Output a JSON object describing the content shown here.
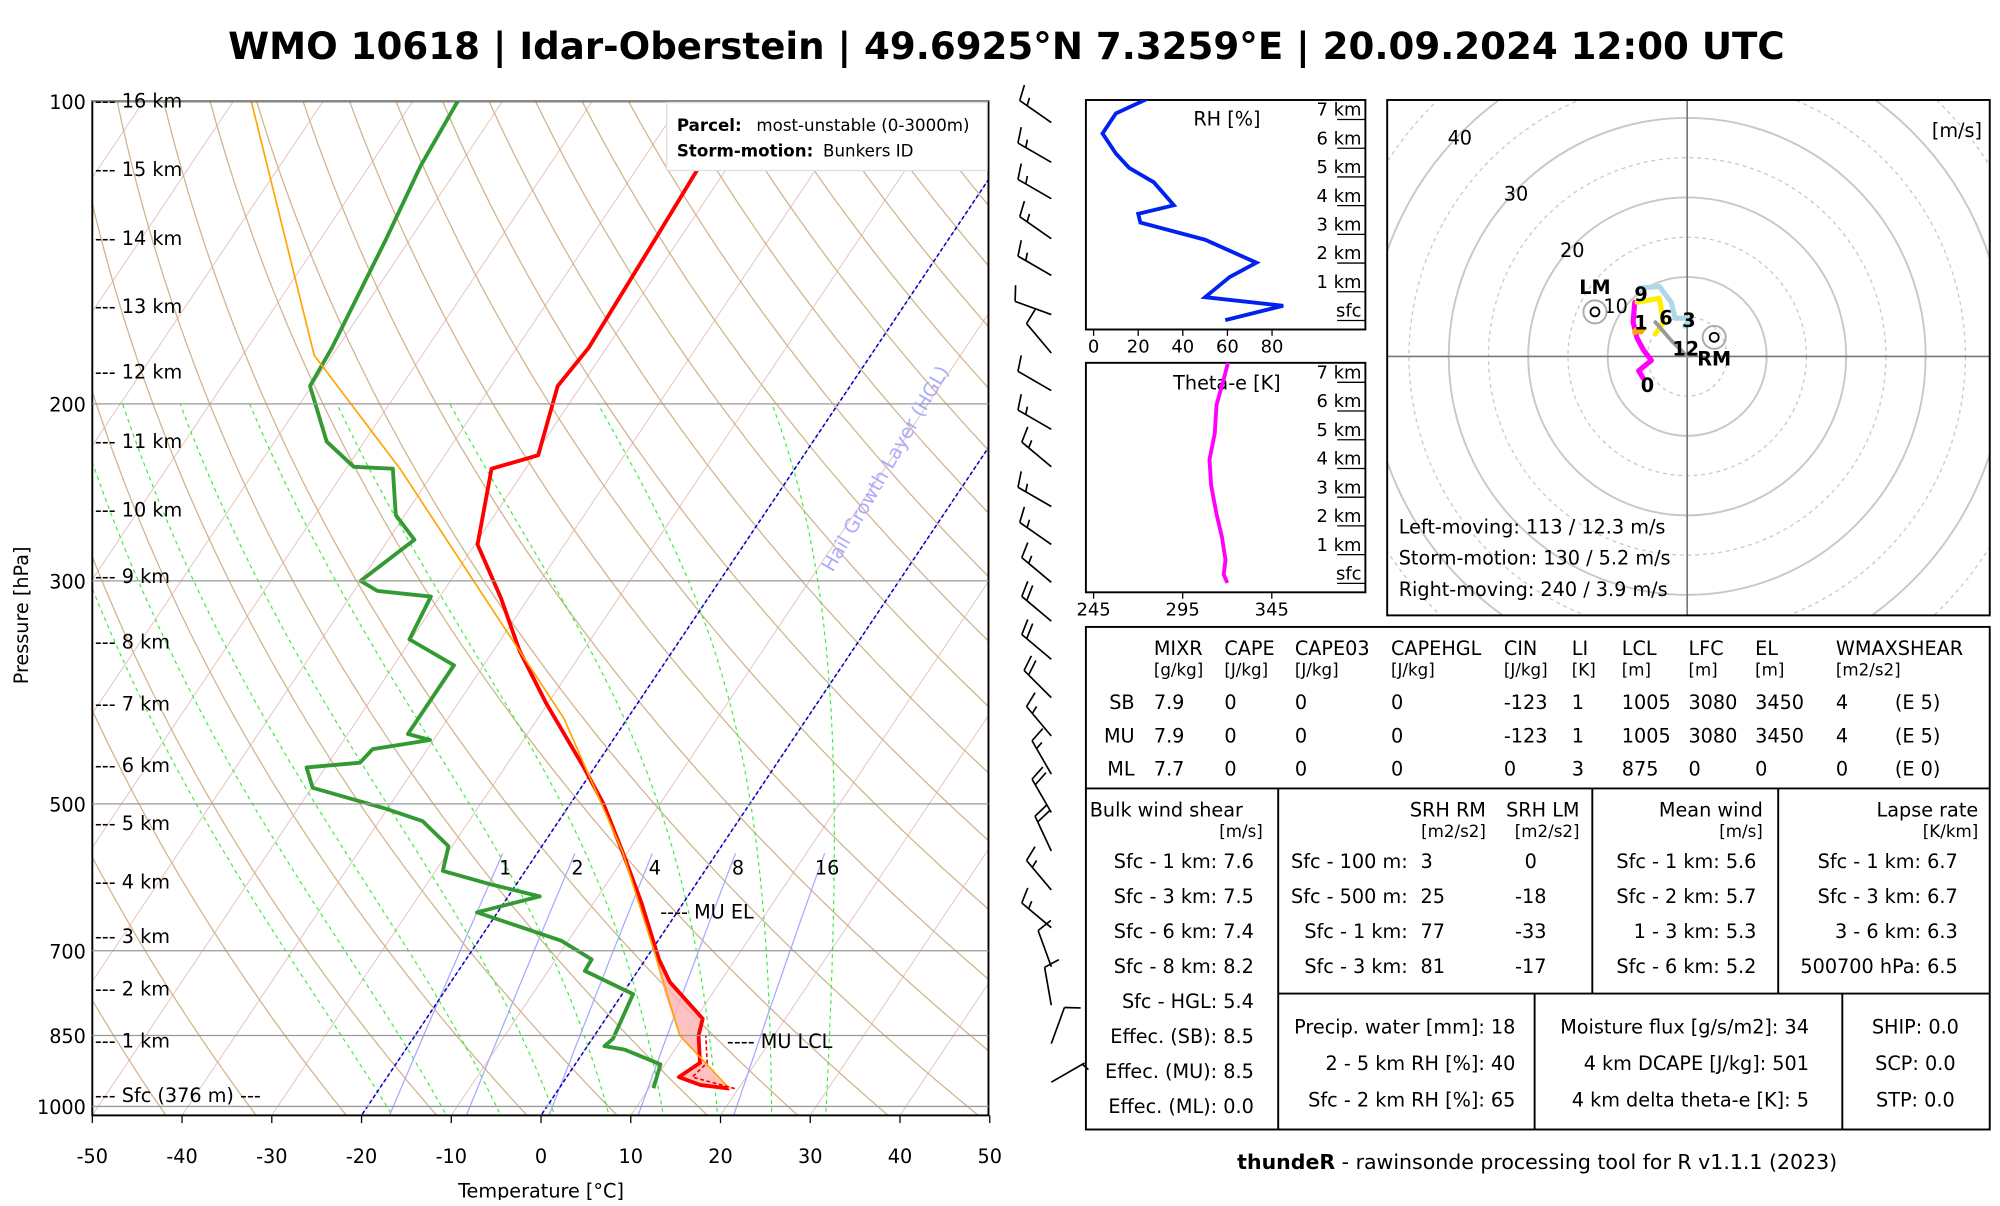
{
  "title": "WMO 10618 | Idar-Oberstein | 49.6925°N 7.3259°E | 20.09.2024 12:00 UTC",
  "chart_data": [
    {
      "type": "line",
      "name": "skew-T log-p diagram",
      "xlabel": "Temperature [°C]",
      "ylabel": "Pressure [hPa]",
      "x_ticks": [
        -50,
        -40,
        -30,
        -20,
        -10,
        0,
        10,
        20,
        30,
        40,
        50
      ],
      "xlim": [
        -50,
        50
      ],
      "y_ticks": [
        100,
        200,
        300,
        500,
        700,
        850,
        1000
      ],
      "ylim": [
        1020,
        100
      ],
      "height_labels": [
        {
          "p": 100,
          "label": "--- 16 km"
        },
        {
          "p": 117,
          "label": "--- 15 km"
        },
        {
          "p": 137,
          "label": "--- 14 km"
        },
        {
          "p": 160,
          "label": "--- 13 km"
        },
        {
          "p": 186,
          "label": "--- 12 km"
        },
        {
          "p": 218,
          "label": "--- 11 km"
        },
        {
          "p": 255,
          "label": "--- 10 km"
        },
        {
          "p": 297,
          "label": "--- 9 km"
        },
        {
          "p": 345,
          "label": "--- 8 km"
        },
        {
          "p": 398,
          "label": "--- 7 km"
        },
        {
          "p": 458,
          "label": "--- 6 km"
        },
        {
          "p": 523,
          "label": "--- 5 km"
        },
        {
          "p": 598,
          "label": "--- 4 km"
        },
        {
          "p": 678,
          "label": "--- 3 km"
        },
        {
          "p": 764,
          "label": "--- 2 km"
        },
        {
          "p": 861,
          "label": "--- 1 km"
        },
        {
          "p": 975,
          "label": "--- Sfc (376 m) ---"
        }
      ],
      "legend": {
        "parcel_label": "Parcel:",
        "parcel_value": "most-unstable (0-3000m)",
        "storm_label": "Storm-motion:",
        "storm_value": "Bunkers ID",
        "placement": "top-right"
      },
      "annotations": {
        "hgl": "Hail Growth Layer (HGL)",
        "mu_el": "---- MU EL",
        "mu_el_p": 641,
        "mu_lcl": "---- MU LCL",
        "mu_lcl_p": 862
      },
      "mixing_ratio_lines": [
        "1",
        "2",
        "4",
        "8",
        "16"
      ],
      "special_isotherms": [
        0,
        -20
      ],
      "series": [
        {
          "name": "temperature",
          "color": "#ff0000",
          "p": [
            960,
            952,
            935,
            905,
            850,
            818,
            752,
            714,
            627,
            558,
            500,
            460,
            397,
            352,
            312,
            276,
            232,
            225,
            192,
            176,
            136.5,
            116,
            100
          ],
          "t": [
            19.0,
            15.5,
            12.5,
            13.8,
            11.6,
            10.8,
            4.4,
            1.5,
            -4.7,
            -10.6,
            -16.3,
            -21.2,
            -30.2,
            -37.1,
            -43.1,
            -49.7,
            -53.8,
            -49.6,
            -52.6,
            -52.0,
            -52.7,
            -53.2,
            -55.3
          ]
        },
        {
          "name": "dewpoint",
          "color": "#339933",
          "p": [
            959,
            908,
            878,
            871,
            856,
            773,
            733,
            714,
            684,
            641,
            618,
            600,
            583,
            551,
            520,
            505,
            482,
            460,
            455,
            441,
            432,
            426,
            364,
            343,
            311,
            307,
            300,
            273,
            258,
            232,
            231,
            218,
            192,
            176,
            137,
            116,
            100
          ],
          "t": [
            10.5,
            9.5,
            4.4,
            1.9,
            2.3,
            1.2,
            -5.9,
            -6.0,
            -10.8,
            -22.3,
            -16.5,
            -23.3,
            -29.2,
            -30.4,
            -35.2,
            -40.4,
            -49.9,
            -52.1,
            -46.5,
            -46.1,
            -40.4,
            -43.3,
            -43.3,
            -50.2,
            -51.0,
            -57.4,
            -60.0,
            -57.1,
            -61.0,
            -64.8,
            -69.3,
            -74.2,
            -80.2,
            -80.6,
            -82.7,
            -84.3,
            -85.0
          ]
        },
        {
          "name": "parcel",
          "color": "#ffa500",
          "p": [
            960,
            850,
            700,
            558,
            411,
            232,
            179,
            100
          ],
          "t": [
            19.0,
            9.5,
            0.3,
            -10.6,
            -27.1,
            -64.0,
            -82.0,
            -108.0
          ]
        }
      ],
      "wind_barbs": [
        {
          "p": 105,
          "dir": 305,
          "spd_kt": 15
        },
        {
          "p": 115,
          "dir": 300,
          "spd_kt": 15
        },
        {
          "p": 125,
          "dir": 300,
          "spd_kt": 15
        },
        {
          "p": 137,
          "dir": 305,
          "spd_kt": 15
        },
        {
          "p": 149,
          "dir": 300,
          "spd_kt": 15
        },
        {
          "p": 163,
          "dir": 290,
          "spd_kt": 10
        },
        {
          "p": 178,
          "dir": 320,
          "spd_kt": 10
        },
        {
          "p": 194,
          "dir": 300,
          "spd_kt": 10
        },
        {
          "p": 212,
          "dir": 300,
          "spd_kt": 15
        },
        {
          "p": 231,
          "dir": 310,
          "spd_kt": 15
        },
        {
          "p": 253,
          "dir": 300,
          "spd_kt": 15
        },
        {
          "p": 276,
          "dir": 305,
          "spd_kt": 15
        },
        {
          "p": 301,
          "dir": 310,
          "spd_kt": 15
        },
        {
          "p": 329,
          "dir": 310,
          "spd_kt": 20
        },
        {
          "p": 359,
          "dir": 310,
          "spd_kt": 20
        },
        {
          "p": 392,
          "dir": 315,
          "spd_kt": 20
        },
        {
          "p": 428,
          "dir": 320,
          "spd_kt": 15
        },
        {
          "p": 467,
          "dir": 330,
          "spd_kt": 15
        },
        {
          "p": 510,
          "dir": 330,
          "spd_kt": 20
        },
        {
          "p": 557,
          "dir": 335,
          "spd_kt": 20
        },
        {
          "p": 609,
          "dir": 320,
          "spd_kt": 15
        },
        {
          "p": 664,
          "dir": 310,
          "spd_kt": 15
        },
        {
          "p": 726,
          "dir": 340,
          "spd_kt": 10
        },
        {
          "p": 793,
          "dir": 350,
          "spd_kt": 10
        },
        {
          "p": 866,
          "dir": 20,
          "spd_kt": 10
        },
        {
          "p": 946,
          "dir": 60,
          "spd_kt": 5
        }
      ]
    },
    {
      "type": "line",
      "name": "relative humidity profile",
      "title": "RH [%]",
      "x_ticks": [
        "0",
        "20",
        "40",
        "60",
        "80"
      ],
      "xlim": [
        -3,
        100
      ],
      "height_ticks": [
        "sfc",
        "1 km",
        "2 km",
        "3 km",
        "4 km",
        "5 km",
        "6 km",
        "7 km"
      ],
      "series": [
        {
          "name": "RH",
          "color": "#0022ee",
          "h_km": [
            -0.3,
            0.2,
            0.5,
            1.2,
            1.7,
            2.5,
            3.1,
            3.4,
            3.7,
            4.5,
            5.0,
            5.5,
            6.2,
            6.9,
            7.4,
            7.8
          ],
          "rh": [
            59,
            85,
            50,
            61,
            73,
            50,
            21,
            20,
            36,
            27,
            16,
            10,
            4,
            10,
            24,
            33
          ]
        }
      ]
    },
    {
      "type": "line",
      "name": "theta-e profile",
      "title": "Theta-e [K]",
      "x_ticks": [
        "245",
        "295",
        "345"
      ],
      "xlim": [
        241,
        400
      ],
      "height_ticks": [
        "sfc",
        "1 km",
        "2 km",
        "3 km",
        "4 km",
        "5 km",
        "6 km",
        "7 km"
      ],
      "series": [
        {
          "name": "theta-e",
          "color": "#ff00ff",
          "h_km": [
            -0.3,
            0.0,
            0.5,
            1.3,
            2.1,
            3.1,
            4.0,
            4.9,
            5.9,
            6.8,
            7.5
          ],
          "theta_e": [
            320,
            318,
            319,
            317,
            314,
            311,
            310,
            313,
            314,
            318,
            321
          ]
        }
      ]
    },
    {
      "type": "line",
      "name": "hodograph",
      "unit_label": "[m/s]",
      "ring_labels": [
        "10",
        "20",
        "30",
        "40"
      ],
      "storm_motion_lines": [
        "Left-moving: 113 / 12.3 m/s",
        "Storm-motion: 130 / 5.2 m/s",
        "Right-moving: 240 / 3.9 m/s"
      ],
      "lm": {
        "label": "LM",
        "u": -11.6,
        "v": 5.6
      },
      "rm": {
        "label": "RM",
        "u": 3.4,
        "v": 2.4
      },
      "series": [
        {
          "name": "0-1 km",
          "color": "#ff00ff",
          "u": [
            -5.5,
            -6.1,
            -4.5,
            -5.5,
            -6.3,
            -6.8,
            -6.6
          ],
          "v": [
            -2.8,
            -1.8,
            -0.5,
            0.8,
            2.3,
            4.3,
            6.8
          ]
        },
        {
          "name": "1-3 km",
          "color": "#ffa500",
          "u": [
            -6.6,
            -5.5,
            -5.8,
            -6.5,
            -6.6
          ],
          "v": [
            3.0,
            3.5,
            3.1,
            3.3,
            3.0
          ]
        },
        {
          "name": "3-6 km",
          "color": "#ffee00",
          "u": [
            -6.3,
            -3.5,
            -3.0,
            -4.0
          ],
          "v": [
            6.8,
            7.3,
            4.3,
            2.8
          ]
        },
        {
          "name": "6-9 km",
          "color": "#add8e6",
          "u": [
            -6.0,
            -3.5,
            -2.0,
            -1.5,
            0.5,
            -0.3
          ],
          "v": [
            8.6,
            8.8,
            6.8,
            4.8,
            4.8,
            3.8
          ]
        },
        {
          "name": "9-12 km",
          "color": "#999999",
          "u": [
            -4.0,
            -2.0,
            0.0
          ],
          "v": [
            4.3,
            2.0,
            0.0
          ]
        }
      ],
      "height_markers": [
        {
          "label": "0",
          "u": -5.0,
          "v": -3.5
        },
        {
          "label": "1",
          "u": -5.5,
          "v": 5.3
        },
        {
          "label": "3",
          "u": -0.1,
          "v": 3.7
        },
        {
          "label": "6",
          "u": -3.0,
          "v": 5.0
        },
        {
          "label": "9",
          "u": -5.8,
          "v": 6.8
        },
        {
          "label": "12",
          "u": -0.5,
          "v": 2.4
        }
      ]
    }
  ],
  "params_table": {
    "headers": [
      [
        "MIXR",
        "[g/kg]"
      ],
      [
        "CAPE",
        "[J/kg]"
      ],
      [
        "CAPE03",
        "[J/kg]"
      ],
      [
        "CAPEHGL",
        "[J/kg]"
      ],
      [
        "CIN",
        "[J/kg]"
      ],
      [
        "LI",
        "[K]"
      ],
      [
        "LCL",
        "[m]"
      ],
      [
        "LFC",
        "[m]"
      ],
      [
        "EL",
        "[m]"
      ],
      [
        "WMAXSHEAR",
        "[m2/s2]"
      ]
    ],
    "rows": [
      {
        "label": "SB",
        "values": [
          "7.9",
          "0",
          "0",
          "0",
          "-123",
          "1",
          "1005",
          "3080",
          "3450",
          "4",
          "(E 5)"
        ]
      },
      {
        "label": "MU",
        "values": [
          "7.9",
          "0",
          "0",
          "0",
          "-123",
          "1",
          "1005",
          "3080",
          "3450",
          "4",
          "(E 5)"
        ]
      },
      {
        "label": "ML",
        "values": [
          "7.7",
          "0",
          "0",
          "0",
          "0",
          "3",
          "875",
          "0",
          "0",
          "0",
          "(E 0)"
        ]
      }
    ]
  },
  "bulk_shear": {
    "title": "Bulk wind shear",
    "unit": "[m/s]",
    "rows": [
      "Sfc - 1 km: 7.6",
      "Sfc - 3 km: 7.5",
      "Sfc - 6 km: 7.4",
      "Sfc - 8 km: 8.2",
      "Sfc - HGL: 5.4",
      "Effec. (SB): 8.5",
      "Effec. (MU): 8.5",
      "Effec. (ML): 0.0"
    ]
  },
  "srh": {
    "rm_title": "SRH RM",
    "rm_unit": "[m2/s2]",
    "lm_title": "SRH LM",
    "lm_unit": "[m2/s2]",
    "rows": [
      {
        "label": "Sfc - 100 m:",
        "rm": "3",
        "lm": "0"
      },
      {
        "label": "Sfc - 500 m:",
        "rm": "25",
        "lm": "-18"
      },
      {
        "label": "Sfc - 1 km:",
        "rm": "77",
        "lm": "-33"
      },
      {
        "label": "Sfc - 3 km:",
        "rm": "81",
        "lm": "-17"
      }
    ]
  },
  "mean_wind": {
    "title": "Mean wind",
    "unit": "[m/s]",
    "rows": [
      "Sfc - 1 km: 5.6",
      "Sfc - 2 km: 5.7",
      "1 - 3 km: 5.3",
      "Sfc - 6 km: 5.2"
    ]
  },
  "lapse_rate": {
    "title": "Lapse rate",
    "unit": "[K/km]",
    "rows": [
      "Sfc - 1 km: 6.7",
      "Sfc - 3 km: 6.7",
      "3 - 6 km: 6.3",
      "500700 hPa: 6.5"
    ]
  },
  "moisture": {
    "rows": [
      "Precip. water [mm]: 18",
      "2 - 5 km RH [%]: 40",
      "Sfc - 2 km RH [%]: 65"
    ]
  },
  "moisture_flux": {
    "rows": [
      "Moisture flux [g/s/m2]: 34",
      "4 km DCAPE [J/kg]: 501",
      "4 km delta theta-e [K]: 5"
    ]
  },
  "indices": {
    "rows": [
      "SHIP: 0.0",
      "SCP: 0.0",
      "STP: 0.0"
    ]
  },
  "footer": {
    "bold": "thundeR",
    "text": " - rawinsonde processing tool for R v1.1.1 (2023)"
  }
}
